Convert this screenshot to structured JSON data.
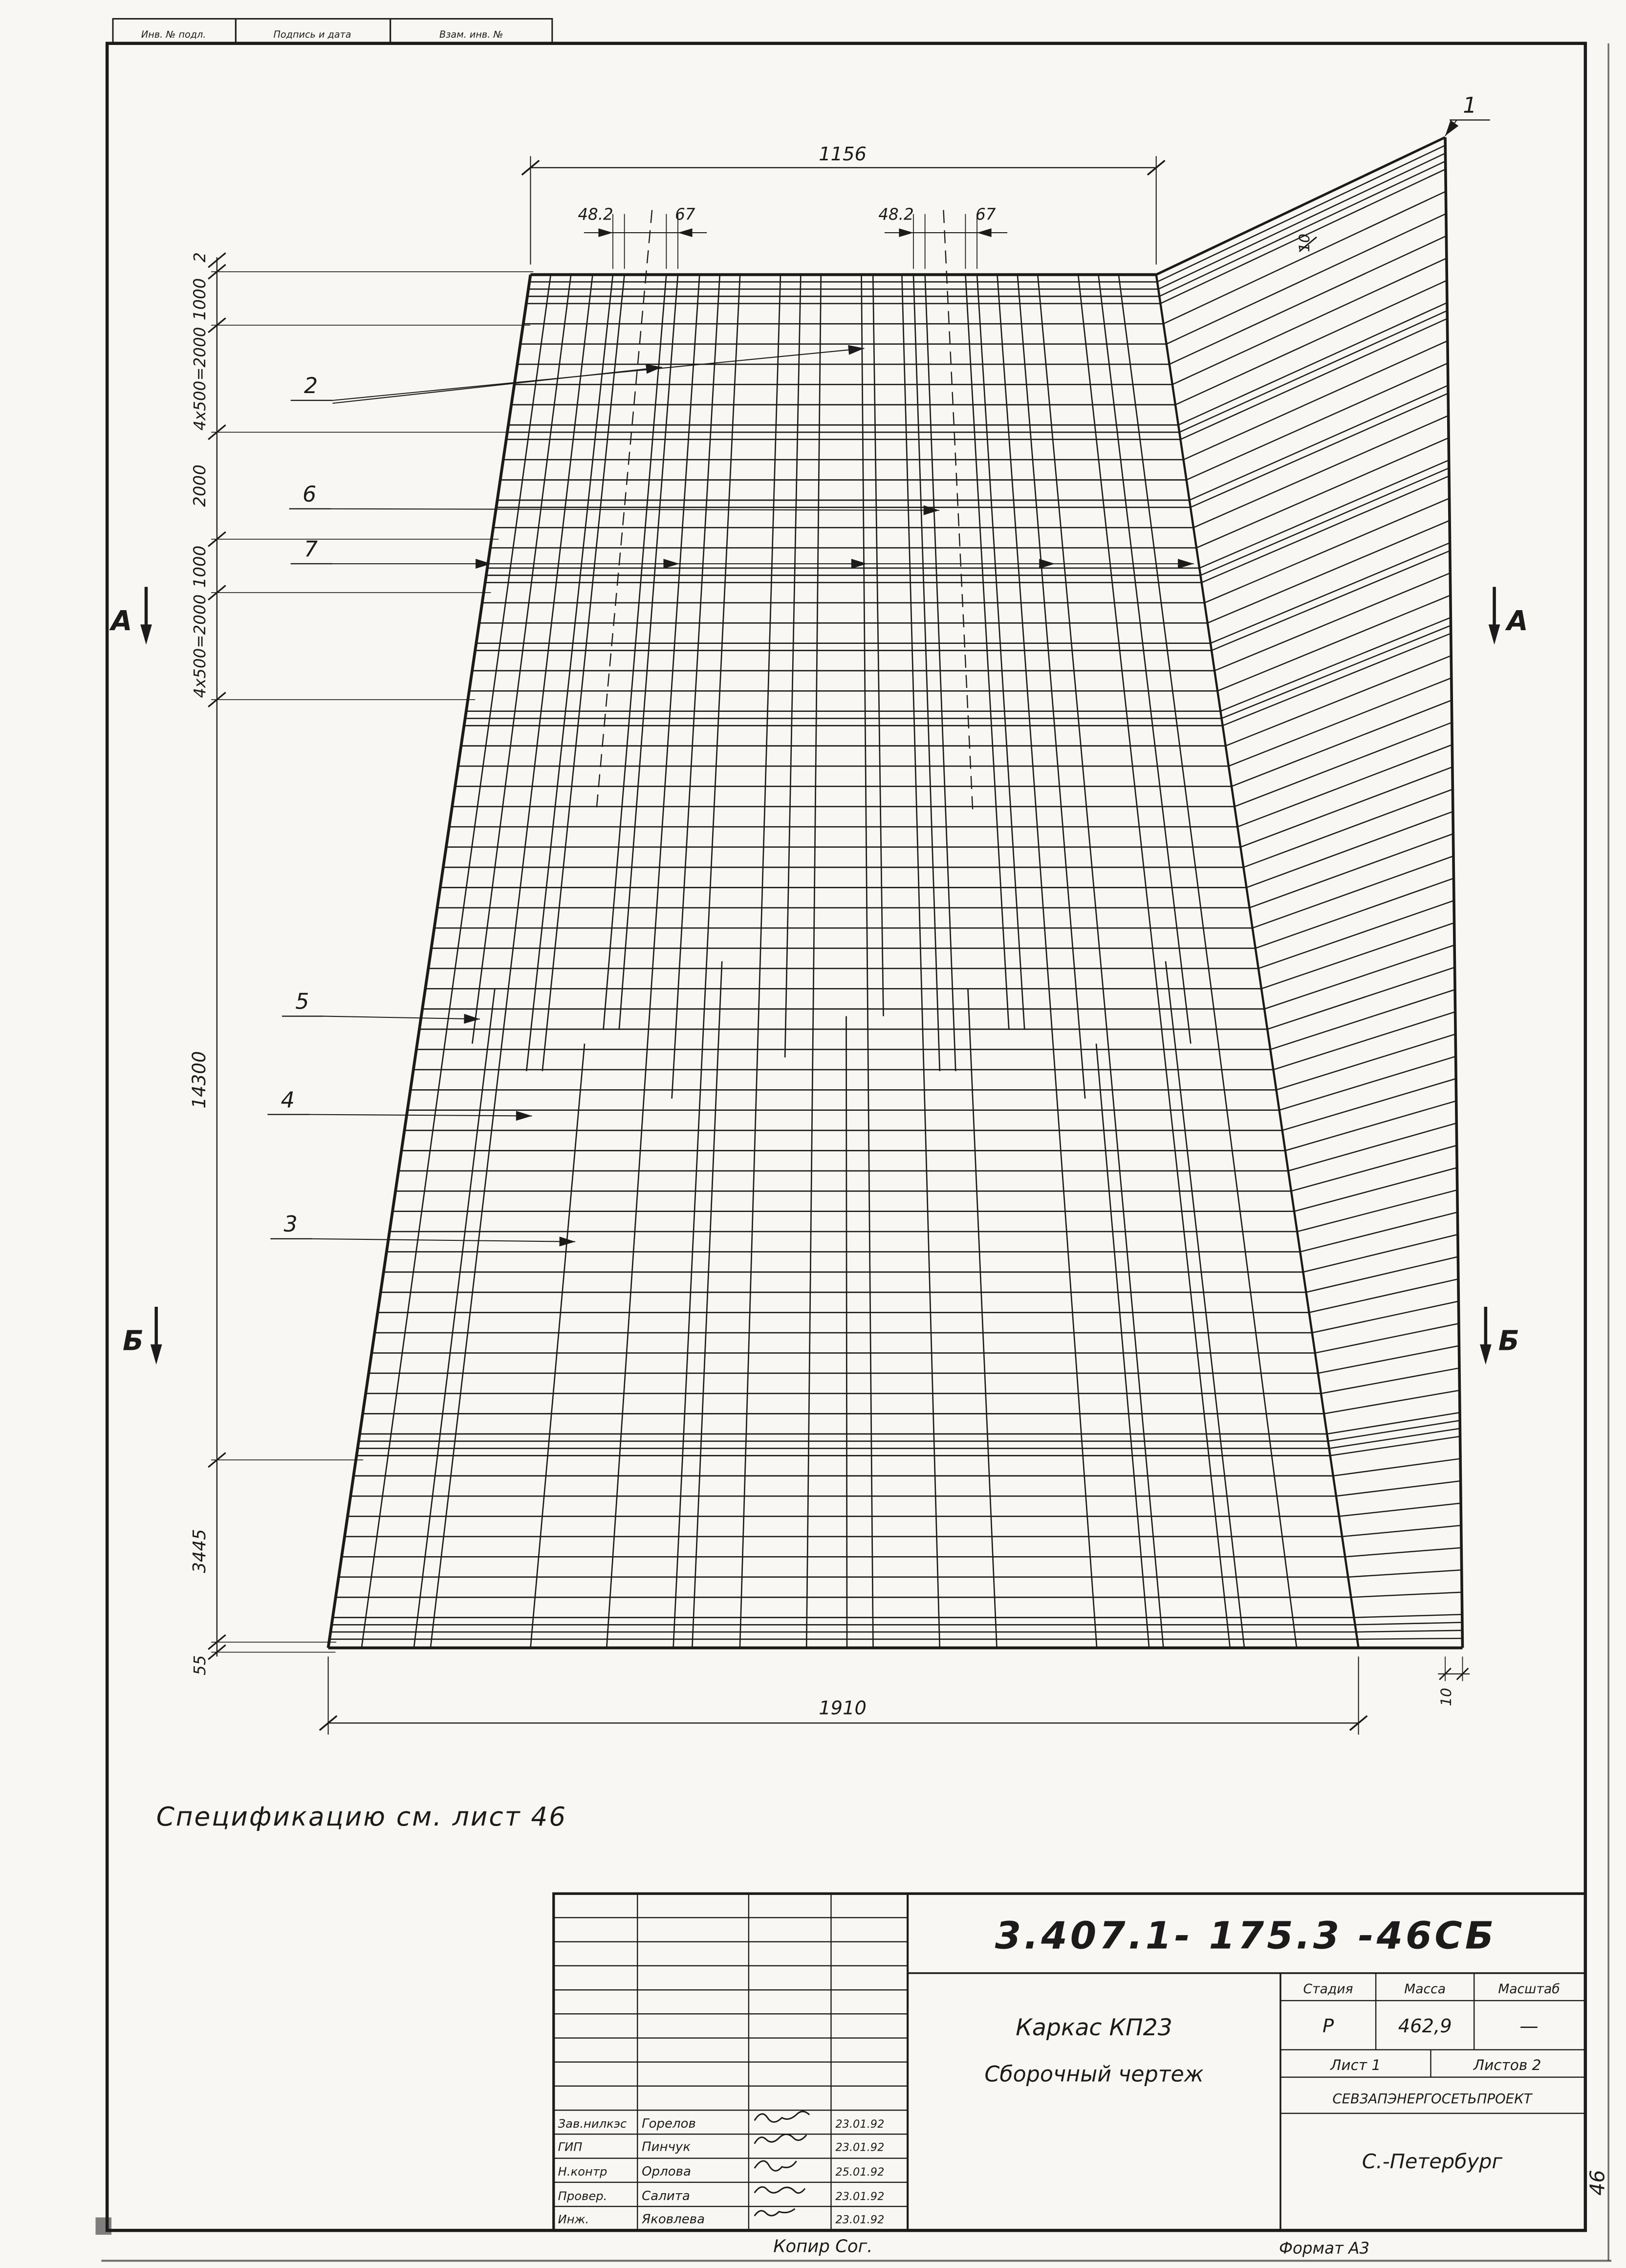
{
  "sheet": {
    "stamp_top": [
      "Инв. № подл.",
      "Подпись и дата",
      "Взам. инв. №"
    ],
    "spec_note": "Спецификацию   см. лист 46",
    "copy_note": "Копир Сог.",
    "format_note": "Формат А3",
    "side_page_number": "46"
  },
  "drawing": {
    "callouts": [
      "1",
      "2",
      "3",
      "4",
      "5",
      "6",
      "7"
    ],
    "sections": [
      "А",
      "Б"
    ],
    "dims": {
      "top_width": "1156",
      "bottom_width": "1910",
      "sub_dims": [
        "48.2",
        "67",
        "48.2",
        "67"
      ],
      "left_chain": [
        "2",
        "1000",
        "4х500=2000",
        "2000",
        "1000",
        "4х500=2000",
        "14300",
        "3445",
        "55"
      ],
      "right_top": "10",
      "right_bottom": "10"
    }
  },
  "title_block": {
    "doc_number": "3.407.1- 175.3 -46СБ",
    "title_line1": "Каркас КП23",
    "title_line2": "Сборочный  чертеж",
    "stage_label": "Стадия",
    "stage": "Р",
    "mass_label": "Масса",
    "mass": "462,9",
    "scale_label": "Масштаб",
    "scale": "—",
    "sheet_label": "Лист 1",
    "sheets_label": "Листов 2",
    "org": "СЕВЗАПЭНЕРГОСЕТЬПРОЕКТ",
    "city": "С.-Петербург",
    "signatories": [
      {
        "role": "Зав.нилкэс",
        "name": "Горелов",
        "date": "23.01.92"
      },
      {
        "role": "ГИП",
        "name": "Пинчук",
        "date": "23.01.92"
      },
      {
        "role": "Н.контр",
        "name": "Орлова",
        "date": "25.01.92"
      },
      {
        "role": "Провер.",
        "name": "Салита",
        "date": "23.01.92"
      },
      {
        "role": "Инж.",
        "name": "Яковлева",
        "date": "23.01.92"
      }
    ]
  }
}
